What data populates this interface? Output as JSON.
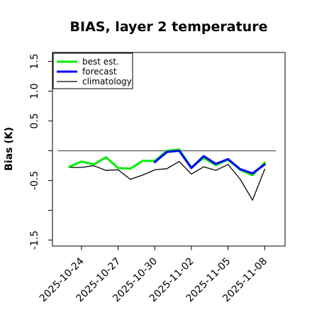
{
  "chart_data": {
    "type": "line",
    "title": "BIAS, layer 2 temperature",
    "xlabel": "",
    "ylabel": "Bias (K)",
    "ylim": [
      -1.6,
      1.65
    ],
    "yticks": [
      -1.5,
      -1.0,
      -0.5,
      0.0,
      0.5,
      1.0,
      1.5
    ],
    "ytick_labels": [
      "-1.5",
      "",
      "-0.5",
      "",
      "0.5",
      "1.0",
      "1.5"
    ],
    "x_dates": [
      "2025-10-23",
      "2025-10-24",
      "2025-10-25",
      "2025-10-26",
      "2025-10-27",
      "2025-10-28",
      "2025-10-29",
      "2025-10-30",
      "2025-10-31",
      "2025-11-01",
      "2025-11-02",
      "2025-11-03",
      "2025-11-04",
      "2025-11-05",
      "2025-11-06",
      "2025-11-07",
      "2025-11-08"
    ],
    "xlim": [
      "2025-10-21T15:00",
      "2025-11-09T16:00"
    ],
    "xtick_labels": [
      {
        "date": "2025-10-24",
        "color": "#000000"
      },
      {
        "date": "2025-10-27",
        "color": "#000000"
      },
      {
        "date": "2025-10-30",
        "color": "#008000"
      },
      {
        "date": "2025-11-02",
        "color": "#000000"
      },
      {
        "date": "2025-11-05",
        "color": "#000000"
      },
      {
        "date": "2025-11-08",
        "color": "#000000"
      }
    ],
    "reference_line": {
      "y": 0.0,
      "color": "#555555"
    },
    "series": [
      {
        "name": "best est.",
        "color": "#00ee00",
        "width": 3,
        "values": [
          -0.27,
          -0.18,
          -0.23,
          -0.11,
          -0.29,
          -0.3,
          -0.17,
          -0.17,
          0.0,
          0.02,
          -0.28,
          -0.12,
          -0.24,
          -0.15,
          -0.32,
          -0.41,
          -0.2
        ]
      },
      {
        "name": "forecast",
        "color": "#0000ff",
        "width": 3,
        "values": [
          null,
          null,
          null,
          null,
          null,
          null,
          null,
          -0.19,
          -0.02,
          0.0,
          -0.29,
          -0.09,
          -0.22,
          -0.14,
          -0.31,
          -0.38,
          -0.23
        ]
      },
      {
        "name": "climatology",
        "color": "#000000",
        "width": 1.3,
        "values": [
          -0.28,
          -0.28,
          -0.25,
          -0.33,
          -0.32,
          -0.48,
          -0.41,
          -0.32,
          -0.3,
          -0.18,
          -0.39,
          -0.27,
          -0.33,
          -0.23,
          -0.48,
          -0.83,
          -0.31
        ]
      }
    ],
    "legend_position": "top-left",
    "grid": false
  }
}
